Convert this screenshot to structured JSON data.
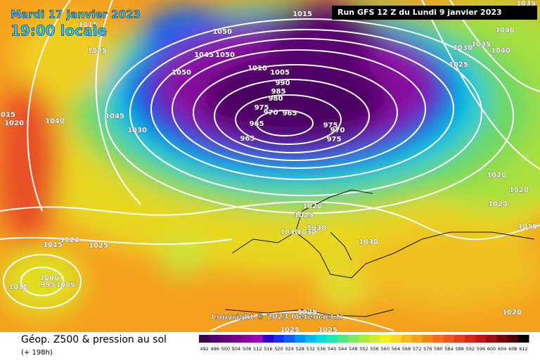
{
  "header": {
    "date": "Mardi 17 janvier 2023",
    "time": "19:00 locale",
    "run": "Run GFS 12 Z du Lundi 9 janvier 2023"
  },
  "copyright": "Copyright © 2023 Meteociel.fr",
  "footer": {
    "title": "Géop. Z500 & pression au sol",
    "lead": "(+ 198h)"
  },
  "colorbar": {
    "labels": [
      492,
      496,
      500,
      504,
      508,
      512,
      516,
      520,
      524,
      528,
      532,
      536,
      540,
      544,
      548,
      552,
      556,
      560,
      564,
      568,
      572,
      576,
      580,
      584,
      588,
      592,
      596,
      600,
      604,
      608,
      612
    ],
    "colors": [
      "#3c0050",
      "#4e0066",
      "#62007a",
      "#76008e",
      "#8a00a2",
      "#a000b8",
      "#2a00d0",
      "#1a30e8",
      "#1060f0",
      "#0090f8",
      "#00b8f0",
      "#00d8e0",
      "#20e8b0",
      "#50e880",
      "#80e860",
      "#a8ec40",
      "#d0ee30",
      "#f0f020",
      "#f8d820",
      "#f8b820",
      "#f8a020",
      "#f08818",
      "#f07018",
      "#e85818",
      "#e04018",
      "#d02818",
      "#b81818",
      "#981010",
      "#780808",
      "#500404",
      "#000000"
    ]
  },
  "isobar_labels": [
    1035,
    1015,
    1050,
    1045,
    1050,
    1050,
    1010,
    1005,
    990,
    985,
    980,
    975,
    970,
    965,
    965,
    965,
    975,
    970,
    975,
    1040,
    1035,
    1030,
    1040,
    1025,
    1045,
    1030,
    1040,
    1015,
    1020,
    1015,
    1020,
    1025,
    1020,
    1020,
    1020,
    1015,
    1020,
    1025,
    1030,
    1030,
    1030,
    1030,
    1015,
    1020,
    1025,
    1010,
    1000,
    995,
    1005,
    1025,
    1025,
    1020,
    1025
  ]
}
